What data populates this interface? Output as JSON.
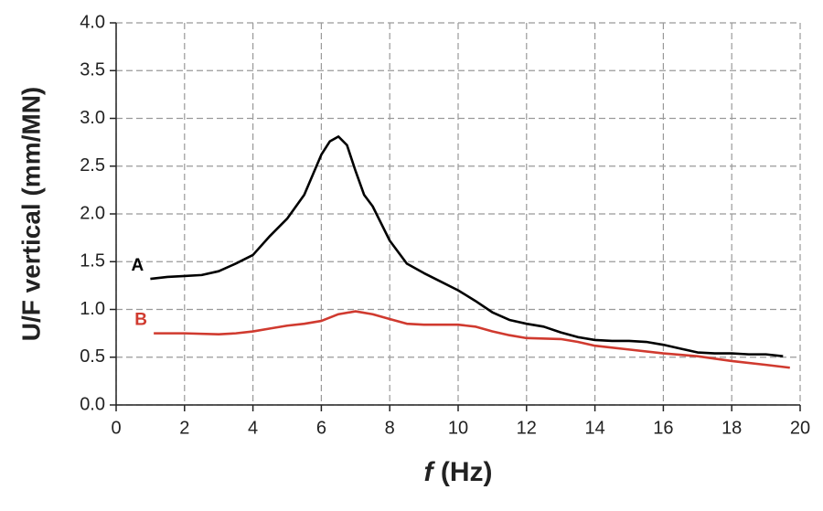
{
  "chart_data": {
    "type": "line",
    "ylabel": "U/F vertical (mm/MN)",
    "xlabel_symbol": "f",
    "xlabel_unit": "(Hz)",
    "xlim": [
      0,
      20
    ],
    "xticks": [
      0,
      2,
      4,
      6,
      8,
      10,
      12,
      14,
      16,
      18,
      20
    ],
    "ylim": [
      0,
      4
    ],
    "yticks": [
      {
        "value": 0,
        "label": "0.0"
      },
      0.5,
      {
        "value": 1,
        "label": "1.0"
      },
      1.5,
      {
        "value": 2,
        "label": "2.0"
      },
      2.5,
      {
        "value": 3,
        "label": "3.0"
      },
      3.5,
      {
        "value": 4,
        "label": "4.0"
      }
    ],
    "grid": true,
    "series": [
      {
        "name": "A",
        "color": "#000000",
        "x": [
          1,
          1.5,
          2,
          2.5,
          3,
          3.5,
          4,
          4.5,
          5,
          5.5,
          6,
          6.25,
          6.5,
          6.75,
          7,
          7.25,
          7.5,
          8,
          8.5,
          9,
          9.5,
          10,
          10.5,
          11,
          11.5,
          12,
          12.5,
          13,
          13.5,
          14,
          14.5,
          15,
          15.5,
          16,
          16.5,
          17,
          17.5,
          18,
          18.5,
          19,
          19.5
        ],
        "values": [
          1.32,
          1.34,
          1.35,
          1.36,
          1.4,
          1.48,
          1.57,
          1.77,
          1.95,
          2.2,
          2.62,
          2.76,
          2.81,
          2.72,
          2.45,
          2.2,
          2.08,
          1.72,
          1.48,
          1.38,
          1.29,
          1.2,
          1.09,
          0.97,
          0.89,
          0.85,
          0.82,
          0.76,
          0.71,
          0.68,
          0.67,
          0.67,
          0.66,
          0.63,
          0.59,
          0.55,
          0.54,
          0.54,
          0.53,
          0.53,
          0.51
        ]
      },
      {
        "name": "B",
        "color": "#d03a2f",
        "x": [
          1.1,
          2,
          3,
          3.5,
          4,
          4.5,
          5,
          5.5,
          6,
          6.5,
          7,
          7.5,
          8,
          8.5,
          9,
          9.5,
          10,
          10.5,
          11,
          11.5,
          12,
          13,
          13.5,
          14,
          15,
          16,
          17,
          18,
          19,
          19.7
        ],
        "values": [
          0.75,
          0.75,
          0.74,
          0.75,
          0.77,
          0.8,
          0.83,
          0.85,
          0.88,
          0.95,
          0.98,
          0.95,
          0.9,
          0.85,
          0.84,
          0.84,
          0.84,
          0.82,
          0.77,
          0.73,
          0.7,
          0.69,
          0.66,
          0.62,
          0.58,
          0.54,
          0.51,
          0.46,
          0.42,
          0.39
        ]
      }
    ]
  }
}
